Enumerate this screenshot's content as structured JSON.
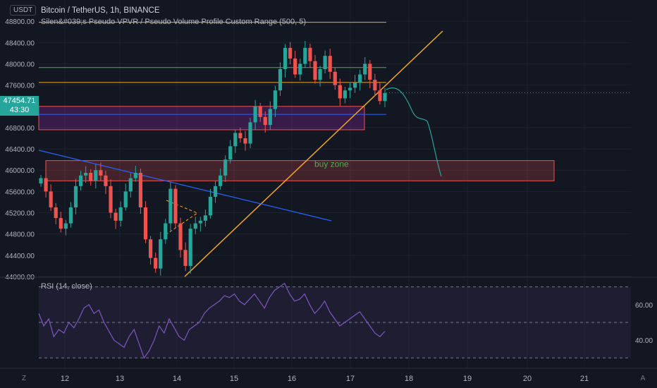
{
  "header": {
    "currency": "USDT",
    "title": "Bitcoin / TetherUS, 1h, BINANCE",
    "indicator": "Silen&#039;s Pseudo VPVR / Pseudo Volume Profile Custom Range (500, 5)"
  },
  "price_badge": {
    "price": "47454.71",
    "countdown": "43:30"
  },
  "rsi": {
    "label": "RSI (14, close)",
    "upper_tick": "60.00",
    "lower_tick": "40.00"
  },
  "corner": {
    "left": "Z",
    "right": "A"
  },
  "colors": {
    "background": "#131722",
    "up": "#26a69a",
    "down": "#ef5350",
    "trendline": "#f5a623",
    "rsi_line": "#7e57c2"
  },
  "chart_data": [
    {
      "type": "candlestick",
      "title": "Bitcoin / TetherUS, 1h, BINANCE",
      "x_ticks": [
        "12",
        "13",
        "14",
        "15",
        "16",
        "17",
        "18",
        "19",
        "20",
        "21"
      ],
      "y_ticks": [
        "44000.00",
        "44400.00",
        "44800.00",
        "45200.00",
        "45600.00",
        "46000.00",
        "46400.00",
        "46800.00",
        "47600.00",
        "48000.00",
        "48400.00",
        "48800.00"
      ],
      "ylim": [
        44000,
        49200
      ],
      "grid": true,
      "price_close_approx": [
        45850,
        45600,
        45300,
        45100,
        44900,
        45000,
        45300,
        45700,
        45900,
        45950,
        45800,
        46000,
        45900,
        45700,
        45200,
        45050,
        45300,
        45600,
        45850,
        45950,
        45300,
        44700,
        44350,
        44150,
        44700,
        45000,
        45650,
        45000,
        44500,
        44200,
        44900,
        45000,
        45050,
        45150,
        45500,
        45700,
        45900,
        46200,
        46450,
        46700,
        46600,
        46500,
        46900,
        47200,
        47000,
        46850,
        47150,
        47500,
        47900,
        48300,
        48100,
        47800,
        48000,
        48300,
        48050,
        47700,
        47900,
        48150,
        47850,
        47600,
        47350,
        47500,
        47550,
        47650,
        47800,
        48000,
        47700,
        47500,
        47300,
        47450
      ],
      "horizontal_levels": [
        {
          "price": 48780,
          "color": "#f5a623"
        },
        {
          "price": 47930,
          "color": "#4caf50"
        },
        {
          "price": 47650,
          "color": "#f5a623"
        },
        {
          "price": 47050,
          "color": "#2962ff"
        }
      ],
      "zones": [
        {
          "label": "",
          "from": 46760,
          "to": 47200,
          "color": "#9c27b0"
        },
        {
          "label": "buy zone",
          "from": 45800,
          "to": 46180,
          "color": "#ef5350"
        }
      ],
      "annotations": [
        "buy zone"
      ]
    },
    {
      "type": "line",
      "title": "RSI (14, close)",
      "y_ticks": [
        "60.00",
        "40.00"
      ],
      "ylim": [
        25,
        75
      ],
      "upper_band": 70,
      "lower_band": 30,
      "middle": 50,
      "values": [
        55,
        48,
        52,
        42,
        46,
        44,
        50,
        47,
        52,
        58,
        60,
        55,
        57,
        50,
        45,
        40,
        38,
        36,
        42,
        46,
        38,
        30,
        34,
        40,
        48,
        44,
        52,
        47,
        42,
        40,
        46,
        48,
        50,
        55,
        58,
        60,
        62,
        65,
        64,
        66,
        62,
        60,
        63,
        66,
        62,
        58,
        64,
        68,
        70,
        72,
        66,
        62,
        63,
        66,
        60,
        55,
        58,
        62,
        56,
        52,
        48,
        50,
        52,
        54,
        56,
        52,
        48,
        44,
        42,
        45
      ]
    }
  ]
}
